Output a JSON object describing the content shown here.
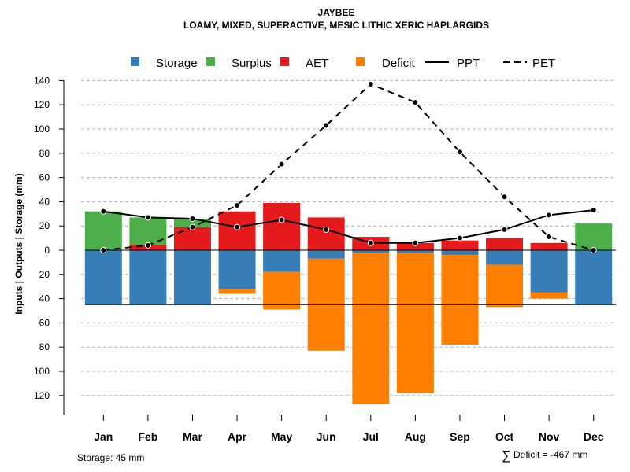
{
  "chart_data": {
    "type": "bar",
    "title": "JAYBEE",
    "subtitle": "LOAMY, MIXED, SUPERACTIVE, MESIC LITHIC XERIC HAPLARGIDS",
    "ylabel": "Inputs | Outputs | Storage    (mm)",
    "xlabel": "",
    "ylim": [
      -135,
      140
    ],
    "yticks": [
      140,
      120,
      100,
      80,
      60,
      40,
      20,
      0,
      -20,
      -40,
      -60,
      -80,
      -100,
      -120
    ],
    "ytick_labels": [
      "140",
      "120",
      "100",
      "80",
      "60",
      "40",
      "20",
      "0",
      "20",
      "40",
      "60",
      "80",
      "100",
      "120"
    ],
    "grid": true,
    "legend_position": "top",
    "categories": [
      "Jan",
      "Feb",
      "Mar",
      "Apr",
      "May",
      "Jun",
      "Jul",
      "Aug",
      "Sep",
      "Oct",
      "Nov",
      "Dec"
    ],
    "storage_capacity": 45,
    "series": [
      {
        "name": "Storage",
        "kind": "bar",
        "color": "#377EB8",
        "values": [
          -45,
          -45,
          -45,
          -32,
          -18,
          -7,
          -2,
          -2,
          -4,
          -12,
          -35,
          -45
        ]
      },
      {
        "name": "Surplus",
        "kind": "bar",
        "color": "#4DAF4A",
        "values": [
          32,
          23,
          7,
          0,
          0,
          0,
          0,
          0,
          0,
          0,
          0,
          22
        ]
      },
      {
        "name": "AET",
        "kind": "bar",
        "color": "#E41A1C",
        "values": [
          0,
          4,
          19,
          32,
          39,
          27,
          11,
          6,
          8,
          10,
          6,
          0
        ]
      },
      {
        "name": "Deficit",
        "kind": "bar",
        "color": "#FF7F00",
        "values": [
          0,
          0,
          0,
          -4,
          -31,
          -76,
          -125,
          -116,
          -74,
          -35,
          -5,
          0
        ]
      },
      {
        "name": "PPT",
        "kind": "line",
        "dash": "solid",
        "color": "#000000",
        "values": [
          32,
          27,
          26,
          19,
          25,
          17,
          6,
          6,
          10,
          17,
          29,
          33
        ]
      },
      {
        "name": "PET",
        "kind": "line",
        "dash": "dashed",
        "color": "#000000",
        "values": [
          0,
          4,
          19,
          37,
          71,
          103,
          137,
          122,
          81,
          44,
          11,
          0
        ]
      }
    ],
    "annotations": {
      "storage_note": "Storage: 45 mm",
      "deficit_symbol": "∑",
      "deficit_note": "Deficit = -467 mm"
    }
  }
}
